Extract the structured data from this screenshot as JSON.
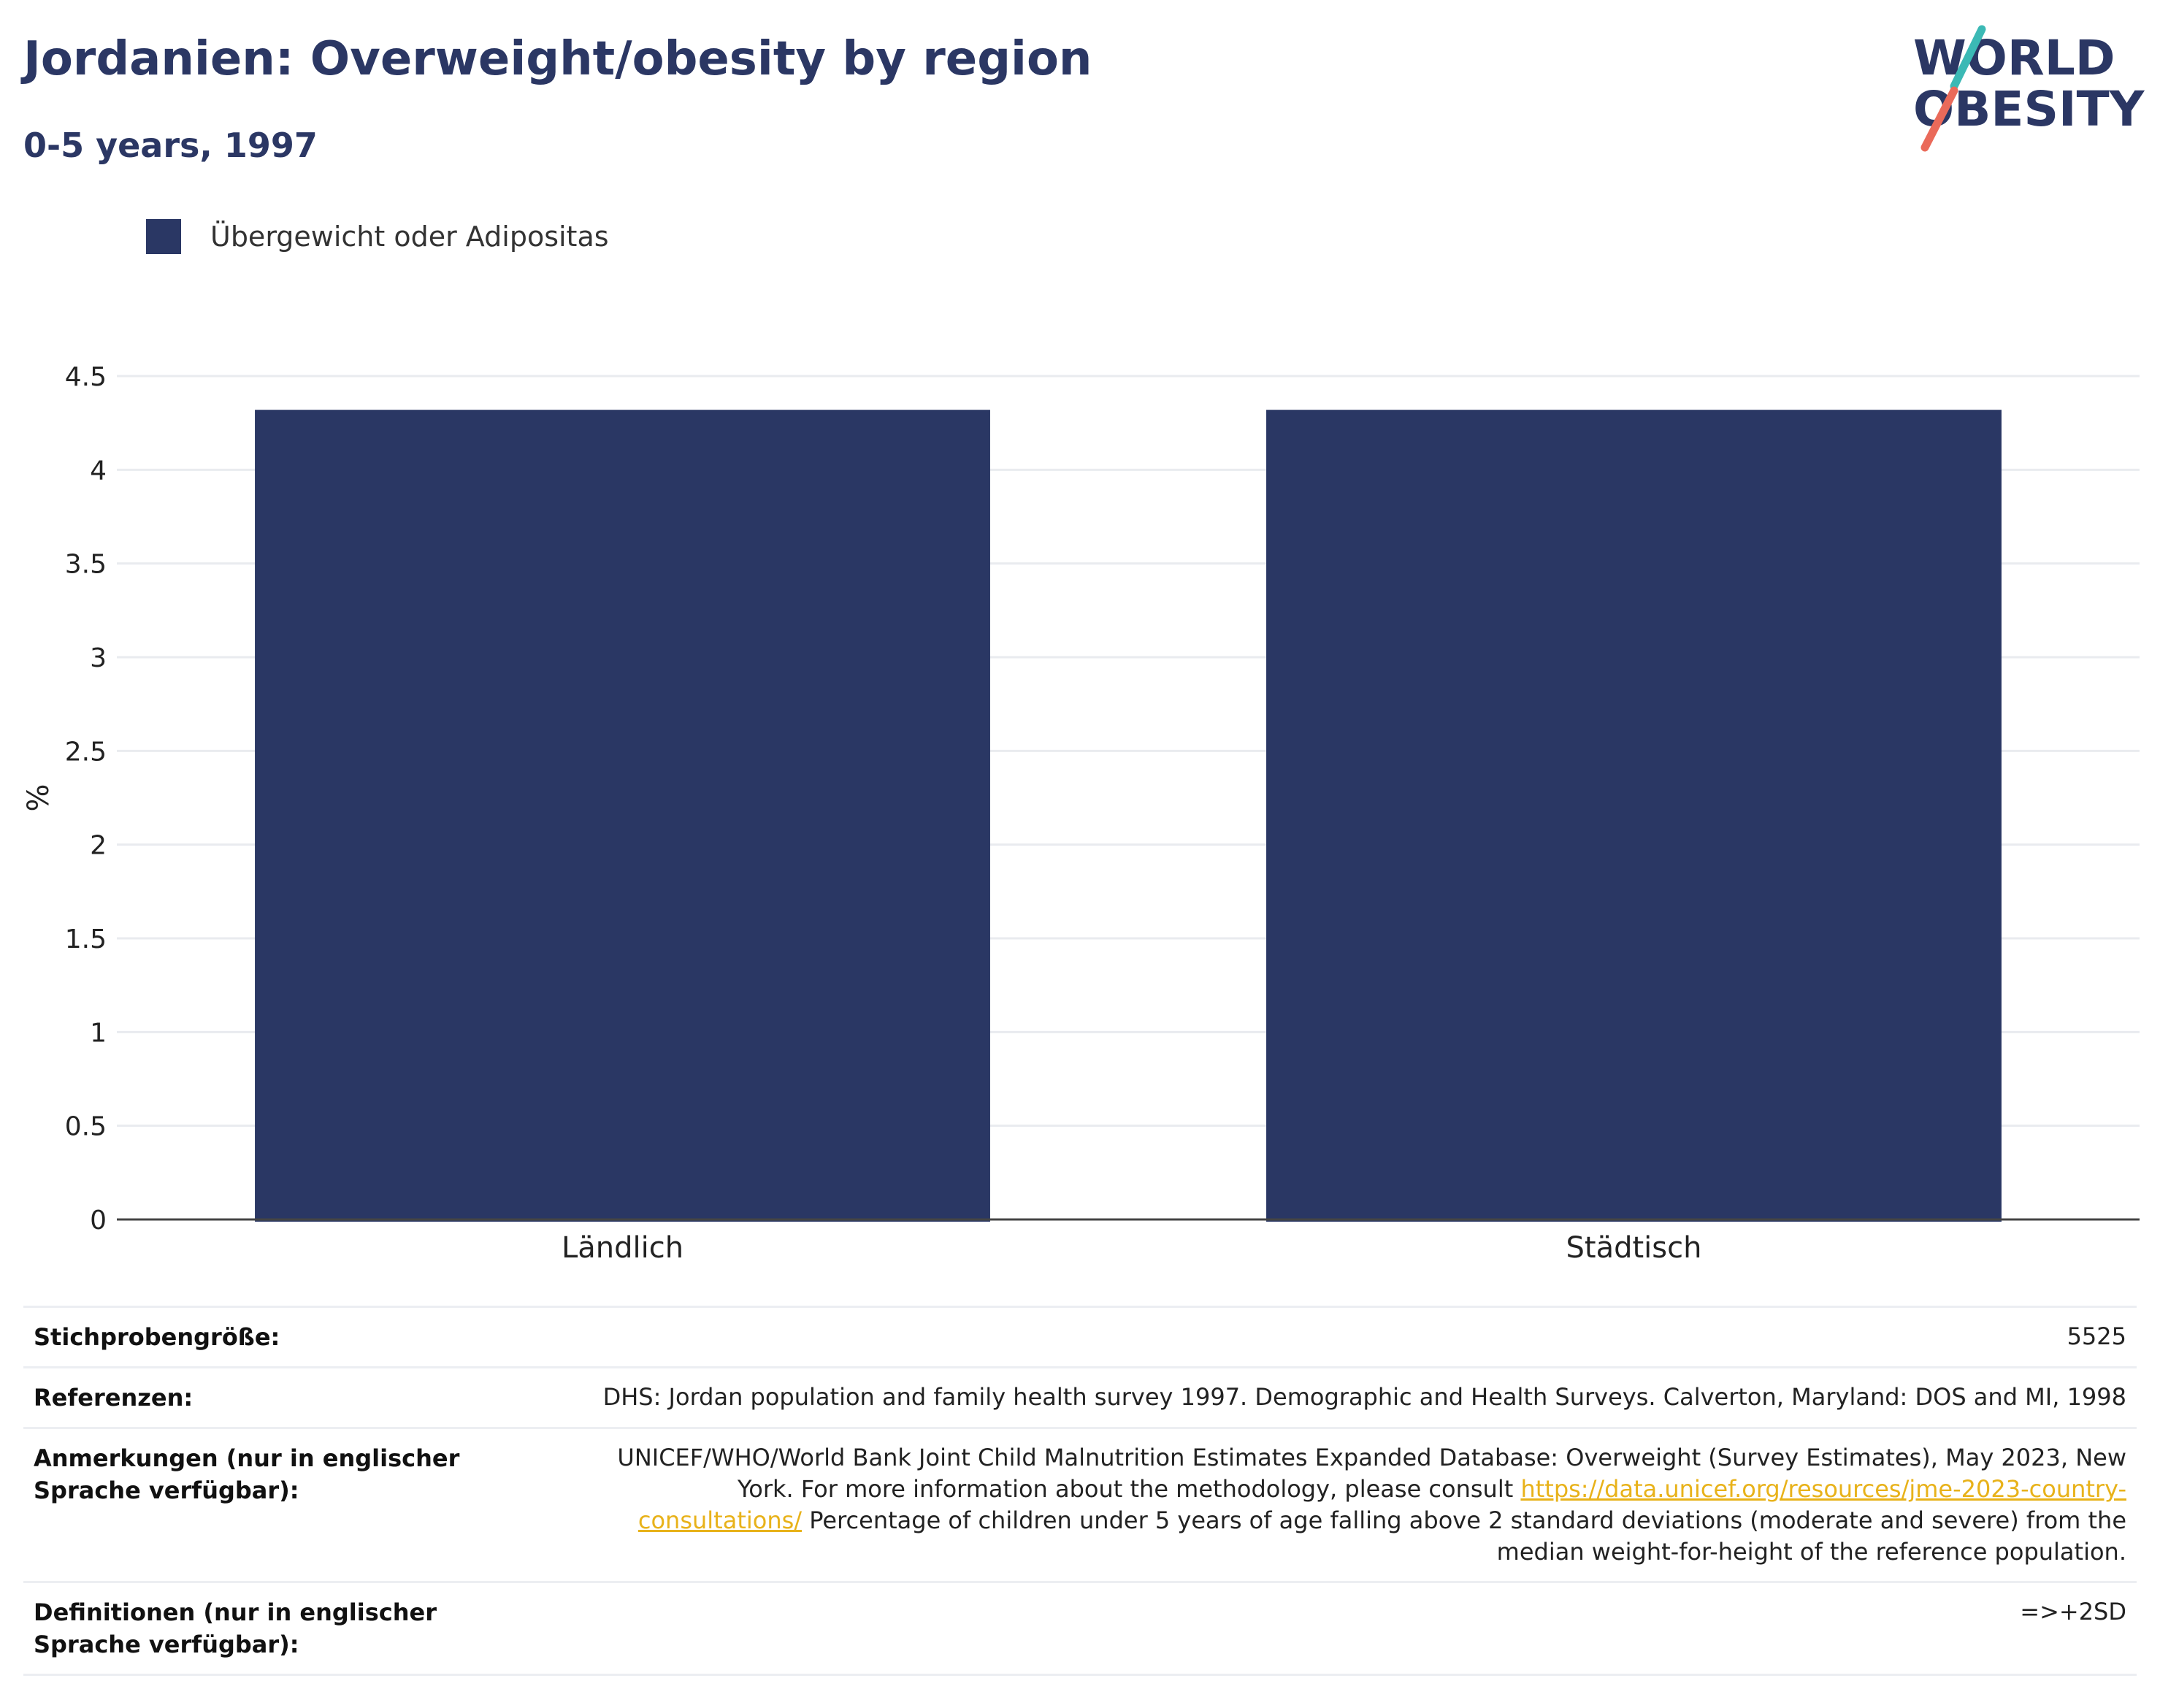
{
  "header": {
    "title": "Jordanien: Overweight/obesity by region",
    "subtitle": "0-5 years, 1997"
  },
  "logo": {
    "line1": "WORLD",
    "line2": "OBESITY"
  },
  "colors": {
    "bar": "#2a3764",
    "title": "#2b3764",
    "logo_teal": "#3bb9b5",
    "logo_coral": "#ea6a5a",
    "link": "#e8b21a"
  },
  "chart_data": {
    "type": "bar",
    "categories": [
      "Ländlich",
      "Städtisch"
    ],
    "series": [
      {
        "name": "Übergewicht oder Adipositas",
        "values": [
          4.32,
          4.32
        ]
      }
    ],
    "title": "Jordanien: Overweight/obesity by region",
    "subtitle": "0-5 years, 1997",
    "xlabel": "",
    "ylabel": "%",
    "ylim": [
      0,
      4.5
    ],
    "yticks": [
      "0",
      "0.5",
      "1",
      "1.5",
      "2",
      "2.5",
      "3",
      "3.5",
      "4",
      "4.5"
    ],
    "grid": true,
    "legend": "top-left"
  },
  "info": {
    "sample_label": "Stichprobengröße:",
    "sample_value": "5525",
    "references_label": "Referenzen:",
    "references_value": "DHS: Jordan population and family health survey 1997. Demographic and Health Surveys. Calverton, Maryland: DOS and MI, 1998",
    "notes_label": "Anmerkungen (nur in englischer Sprache verfügbar):",
    "notes_text_1": "UNICEF/WHO/World Bank Joint Child Malnutrition Estimates Expanded Database: Overweight (Survey Estimates), May 2023, New York. For more information about the methodology, please consult ",
    "notes_link": "https://data.unicef.org/resources/jme-2023-country-consultations/",
    "notes_text_2": "Percentage of children under 5 years of age falling above 2 standard deviations (moderate and severe) from the median weight-for-height of the reference population.",
    "definitions_label": "Definitionen (nur in englischer Sprache verfügbar):",
    "definitions_value": "=>+2SD"
  }
}
